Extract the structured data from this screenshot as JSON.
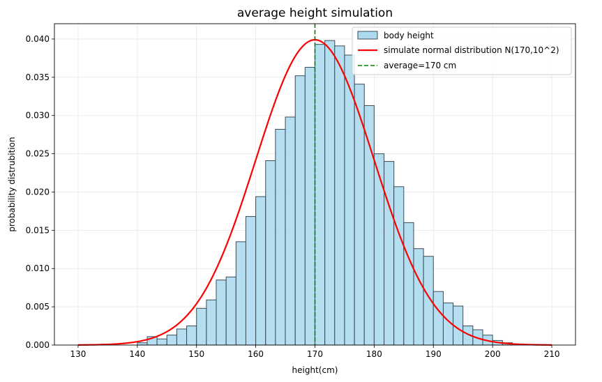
{
  "chart_data": {
    "type": "bar",
    "title": "average height simulation",
    "xlabel": "height(cm)",
    "ylabel": "probability distrubition",
    "xlim": [
      126,
      214
    ],
    "ylim": [
      0,
      0.042
    ],
    "x_ticks": [
      "130",
      "140",
      "150",
      "160",
      "170",
      "180",
      "190",
      "200",
      "210"
    ],
    "y_ticks": [
      "0.000",
      "0.005",
      "0.010",
      "0.015",
      "0.020",
      "0.025",
      "0.030",
      "0.035",
      "0.040"
    ],
    "grid": true,
    "legend_position": "top-right",
    "legend": [
      "body height",
      "simulate normal distribution N(170,10^2)",
      "average=170 cm"
    ],
    "histogram": {
      "name": "body height",
      "bin_width": 1.667,
      "bins": [
        {
          "x0": 140.0,
          "v": 0.0003
        },
        {
          "x0": 141.67,
          "v": 0.0011
        },
        {
          "x0": 143.33,
          "v": 0.0008
        },
        {
          "x0": 145.0,
          "v": 0.0013
        },
        {
          "x0": 146.67,
          "v": 0.0021
        },
        {
          "x0": 148.33,
          "v": 0.0025
        },
        {
          "x0": 150.0,
          "v": 0.0048
        },
        {
          "x0": 151.67,
          "v": 0.0059
        },
        {
          "x0": 153.33,
          "v": 0.0085
        },
        {
          "x0": 155.0,
          "v": 0.0089
        },
        {
          "x0": 156.67,
          "v": 0.0135
        },
        {
          "x0": 158.33,
          "v": 0.0168
        },
        {
          "x0": 160.0,
          "v": 0.0194
        },
        {
          "x0": 161.67,
          "v": 0.0241
        },
        {
          "x0": 163.33,
          "v": 0.0282
        },
        {
          "x0": 165.0,
          "v": 0.0298
        },
        {
          "x0": 166.67,
          "v": 0.0352
        },
        {
          "x0": 168.33,
          "v": 0.0363
        },
        {
          "x0": 170.0,
          "v": 0.0393
        },
        {
          "x0": 171.67,
          "v": 0.0398
        },
        {
          "x0": 173.33,
          "v": 0.0391
        },
        {
          "x0": 175.0,
          "v": 0.0379
        },
        {
          "x0": 176.67,
          "v": 0.0341
        },
        {
          "x0": 178.33,
          "v": 0.0313
        },
        {
          "x0": 180.0,
          "v": 0.025
        },
        {
          "x0": 181.67,
          "v": 0.024
        },
        {
          "x0": 183.33,
          "v": 0.0207
        },
        {
          "x0": 185.0,
          "v": 0.016
        },
        {
          "x0": 186.67,
          "v": 0.0126
        },
        {
          "x0": 188.33,
          "v": 0.0116
        },
        {
          "x0": 190.0,
          "v": 0.007
        },
        {
          "x0": 191.67,
          "v": 0.0055
        },
        {
          "x0": 193.33,
          "v": 0.0051
        },
        {
          "x0": 195.0,
          "v": 0.0025
        },
        {
          "x0": 196.67,
          "v": 0.002
        },
        {
          "x0": 198.33,
          "v": 0.0013
        },
        {
          "x0": 200.0,
          "v": 0.0006
        },
        {
          "x0": 201.67,
          "v": 0.0003
        }
      ]
    },
    "curve": {
      "name": "simulate normal distribution N(170,10^2)",
      "mean": 170,
      "std": 10,
      "x_range": [
        130,
        210
      ]
    },
    "mean_line": {
      "name": "average=170 cm",
      "x": 170
    },
    "colors": {
      "bar_fill": "#ADDAEE",
      "bar_edge": "#3b4a55",
      "curve": "#ff0000",
      "mean_line": "#008000",
      "grid": "#e6e6e6"
    }
  }
}
